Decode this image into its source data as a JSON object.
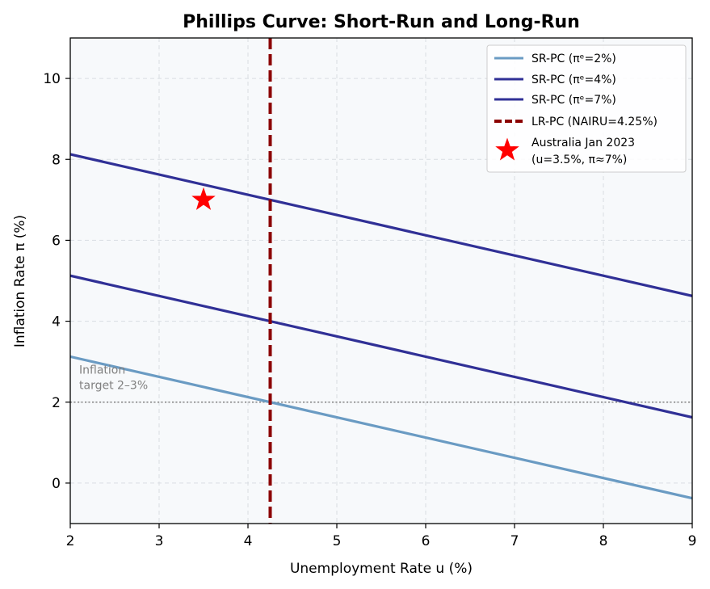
{
  "chart_data": {
    "type": "line",
    "title": "Phillips Curve: Short-Run and Long-Run",
    "xlabel": "Unemployment Rate u (%)",
    "ylabel": "Inflation Rate π (%)",
    "xlim": [
      2,
      9
    ],
    "ylim": [
      -1,
      11
    ],
    "xticks": [
      2,
      3,
      4,
      5,
      6,
      7,
      8,
      9
    ],
    "yticks": [
      0,
      2,
      4,
      6,
      8,
      10
    ],
    "grid": true,
    "legend_position": "top-right",
    "series": [
      {
        "name": "SR-PC (πᵉ=2%)",
        "style": "solid",
        "color": "#6a9bc3",
        "x": [
          2,
          9
        ],
        "y": [
          3.125,
          -0.375
        ]
      },
      {
        "name": "SR-PC (πᵉ=4%)",
        "style": "solid",
        "color": "#303096",
        "x": [
          2,
          9
        ],
        "y": [
          5.125,
          1.625
        ]
      },
      {
        "name": "SR-PC (πᵉ=7%)",
        "style": "solid",
        "color": "#303096",
        "x": [
          2,
          9
        ],
        "y": [
          8.125,
          4.625
        ]
      },
      {
        "name": "LR-PC (NAIRU=4.25%)",
        "style": "dashed",
        "color": "#8b0000",
        "x_value": 4.25
      }
    ],
    "points": [
      {
        "name": "Australia Jan 2023",
        "name_line2": "(u=3.5%, π≈7%)",
        "marker": "star",
        "color": "#ff0000",
        "x": 3.5,
        "y": 7
      }
    ],
    "reference_lines": [
      {
        "type": "horizontal",
        "y": 2,
        "style": "dotted",
        "color": "#808080"
      }
    ],
    "annotations": [
      {
        "line1": "Inflation",
        "line2": "target 2–3%",
        "x": 2.1,
        "y": 2.3
      }
    ]
  }
}
